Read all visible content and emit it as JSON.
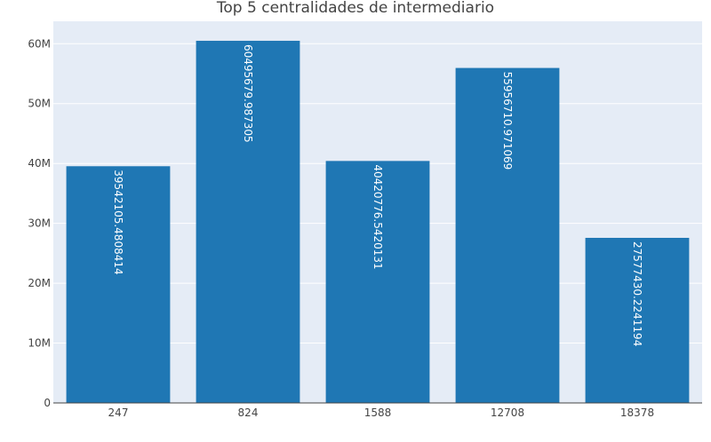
{
  "chart_data": {
    "type": "bar",
    "title": "Top 5 centralidades de intermediario",
    "xlabel": "",
    "ylabel": "",
    "categories": [
      "247",
      "824",
      "1588",
      "12708",
      "18378"
    ],
    "values": [
      39542105.4808414,
      60495679.987305,
      40420776.5420131,
      55956710.971069,
      27577430.2241194
    ],
    "value_labels": [
      "39542105.4808414",
      "60495679.987305",
      "40420776.5420131",
      "55956710.971069",
      "27577430.2241194"
    ],
    "ylim": [
      0,
      63750000
    ],
    "yticks": [
      0,
      10000000,
      20000000,
      30000000,
      40000000,
      50000000,
      60000000
    ],
    "ytick_labels": [
      "0",
      "10M",
      "20M",
      "30M",
      "40M",
      "50M",
      "60M"
    ],
    "grid": true,
    "colors": {
      "bar": "#1f77b4",
      "plot_bg": "#e5ecf6",
      "grid": "#ffffff",
      "text": "#444444",
      "label_text": "#ffffff"
    }
  }
}
